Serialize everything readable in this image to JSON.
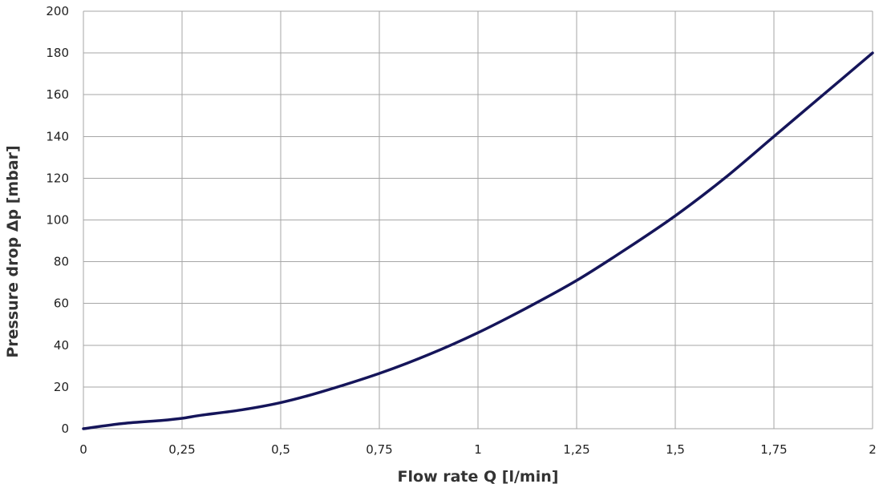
{
  "chart_data": {
    "type": "line",
    "xlabel": "Flow rate Q [l/min]",
    "ylabel": "Pressure drop Δp [mbar]",
    "xlim": [
      0,
      2
    ],
    "ylim": [
      0,
      200
    ],
    "x_ticks": [
      0,
      0.25,
      0.5,
      0.75,
      1,
      1.25,
      1.5,
      1.75,
      2
    ],
    "x_tick_labels": [
      "0",
      "0,25",
      "0,5",
      "0,75",
      "1",
      "1,25",
      "1,5",
      "1,75",
      "2"
    ],
    "y_ticks": [
      0,
      20,
      40,
      60,
      80,
      100,
      120,
      140,
      160,
      180,
      200
    ],
    "y_tick_labels": [
      "0",
      "20",
      "40",
      "60",
      "80",
      "100",
      "120",
      "140",
      "160",
      "180",
      "200"
    ],
    "grid": true,
    "line_color": "#15155a",
    "grid_color": "#a6a6a6",
    "series": [
      {
        "x": [
          0,
          0.1,
          0.2,
          0.25,
          0.3,
          0.4,
          0.5,
          0.6,
          0.75,
          0.875,
          1,
          1.125,
          1.25,
          1.375,
          1.5,
          1.625,
          1.75,
          1.875,
          2
        ],
        "y": [
          0,
          2.5,
          4,
          5,
          6.5,
          9,
          12.5,
          17.5,
          26.5,
          35.5,
          46,
          58,
          71,
          86,
          102,
          120,
          140,
          160,
          180
        ]
      }
    ]
  }
}
